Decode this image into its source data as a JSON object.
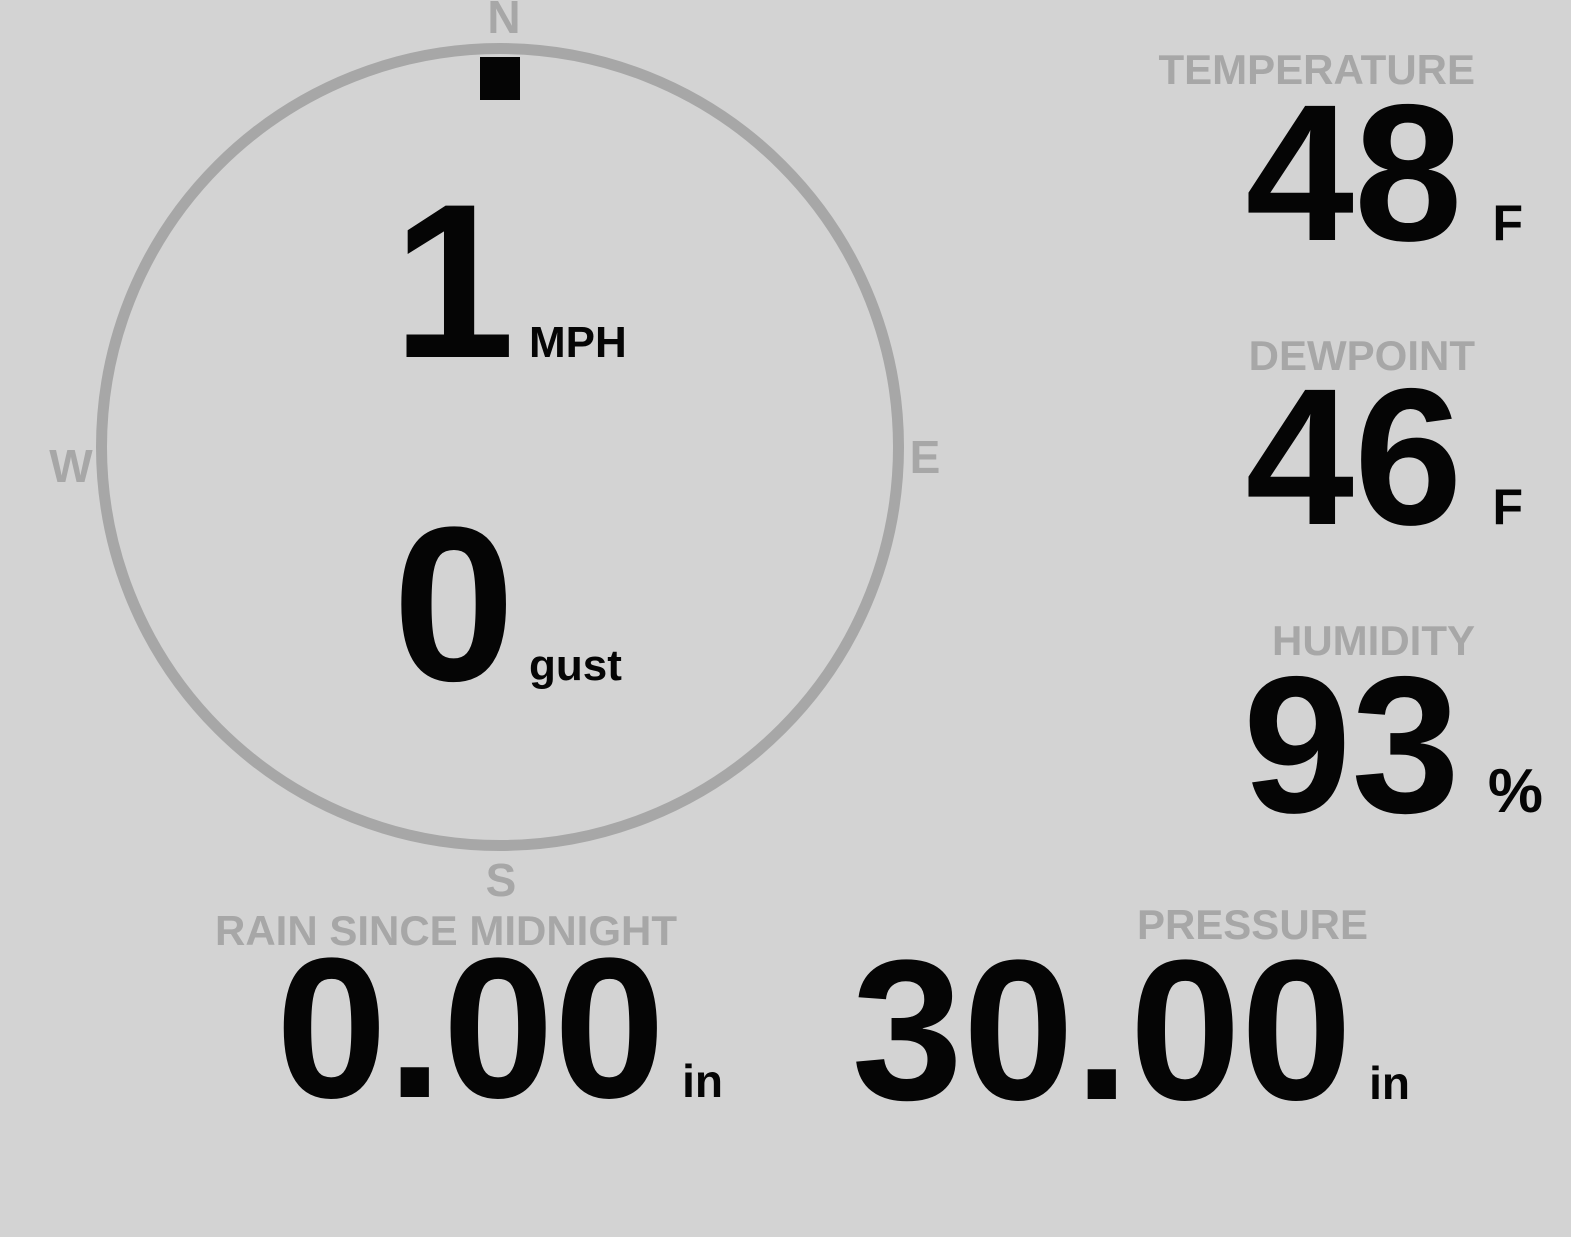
{
  "colors": {
    "background": "#d3d3d3",
    "muted_gray": "#a7a7a7",
    "value_black": "#050505"
  },
  "compass": {
    "cardinals": {
      "north": "N",
      "east": "E",
      "south": "S",
      "west": "W"
    },
    "wind_direction_pointing": "N",
    "speed": {
      "value": "1",
      "unit": "MPH"
    },
    "gust": {
      "value": "0",
      "unit": "gust"
    }
  },
  "metrics": {
    "temperature": {
      "label": "TEMPERATURE",
      "value": "48",
      "unit": "F"
    },
    "dewpoint": {
      "label": "DEWPOINT",
      "value": "46",
      "unit": "F"
    },
    "humidity": {
      "label": "HUMIDITY",
      "value": "93",
      "unit": "%"
    },
    "rain": {
      "label": "RAIN SINCE MIDNIGHT",
      "value": "0.00",
      "unit": "in"
    },
    "pressure": {
      "label": "PRESSURE",
      "value": "30.00",
      "unit": "in"
    }
  }
}
